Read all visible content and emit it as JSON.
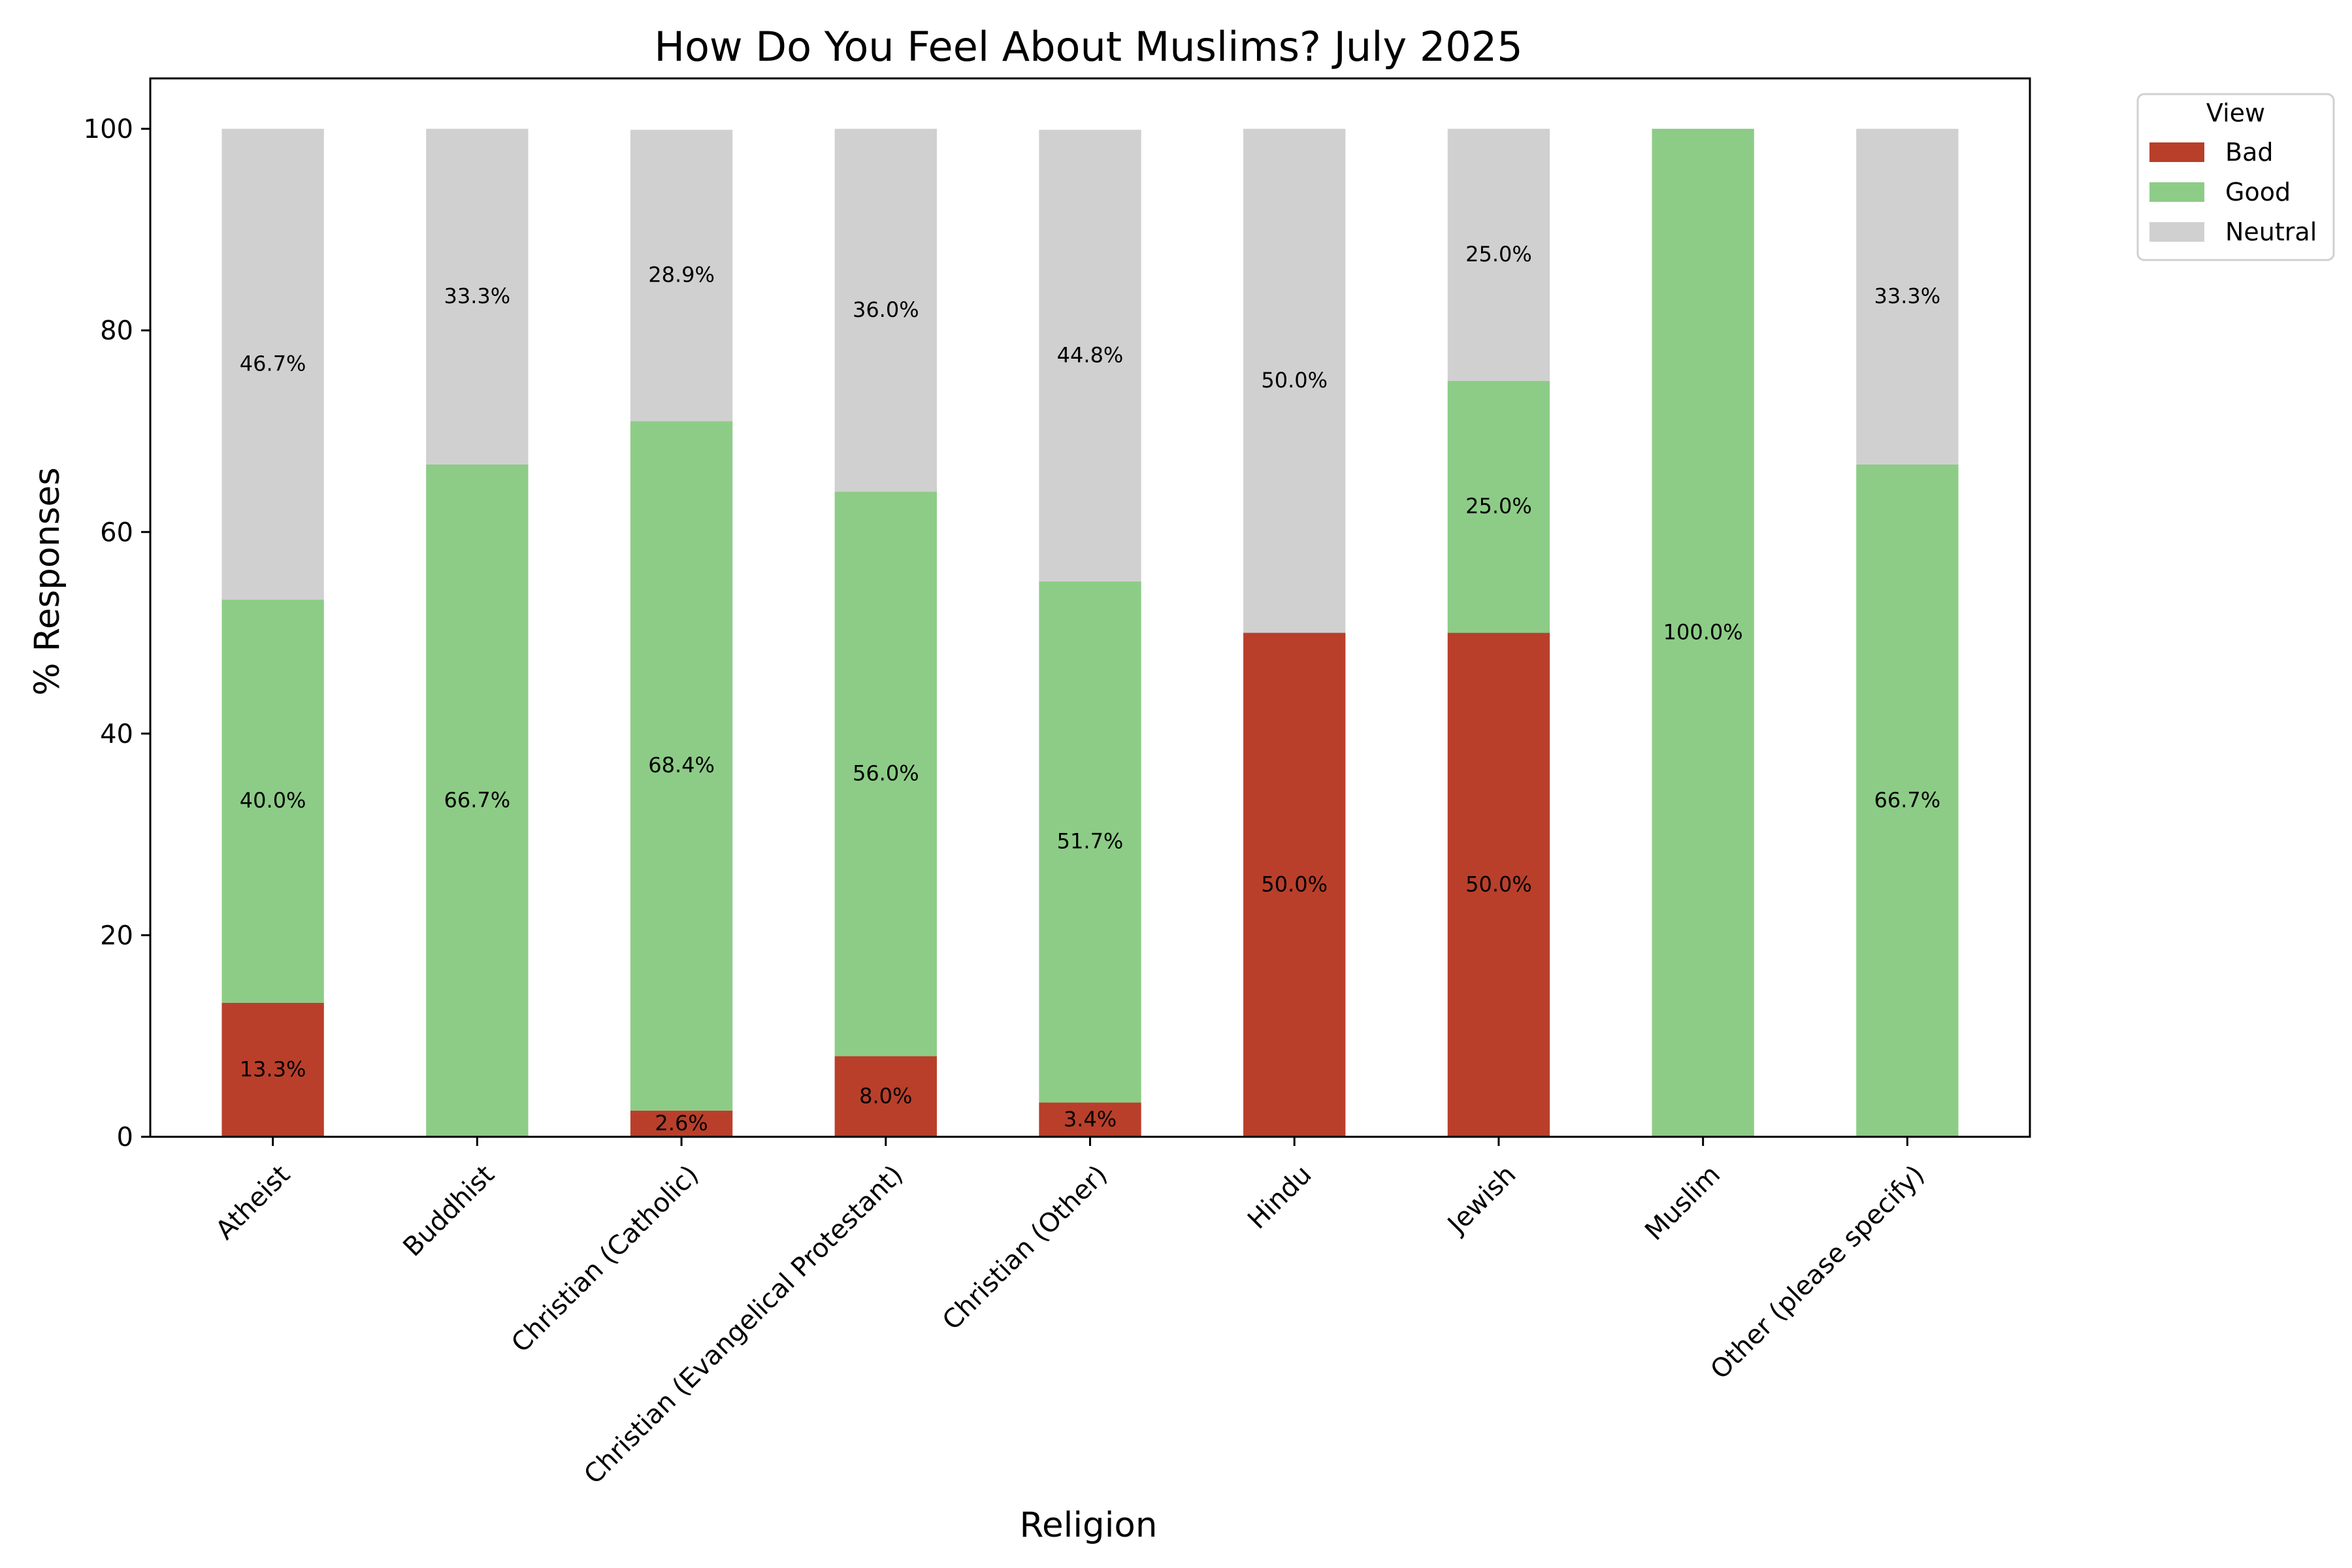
{
  "chart_data": {
    "type": "bar",
    "stacked": true,
    "title": "How Do You Feel About Muslims? July 2025",
    "xlabel": "Religion",
    "ylabel": "% Responses",
    "ylim": [
      0,
      105
    ],
    "yticks": [
      0,
      20,
      40,
      60,
      80,
      100
    ],
    "grid": false,
    "legend": {
      "title": "View",
      "placement": "outside top-right"
    },
    "categories": [
      "Atheist",
      "Buddhist",
      "Christian (Catholic)",
      "Christian (Evangelical Protestant)",
      "Christian (Other)",
      "Hindu",
      "Jewish",
      "Muslim",
      "Other (please specify)"
    ],
    "series": [
      {
        "name": "Bad",
        "color": "#b93f2b",
        "values": [
          13.3,
          0,
          2.6,
          8.0,
          3.4,
          50.0,
          50.0,
          0,
          0
        ]
      },
      {
        "name": "Good",
        "color": "#8dcc87",
        "values": [
          40.0,
          66.7,
          68.4,
          56.0,
          51.7,
          0,
          25.0,
          100.0,
          66.7
        ]
      },
      {
        "name": "Neutral",
        "color": "#d1d0d1",
        "values": [
          46.7,
          33.3,
          28.9,
          36.0,
          44.8,
          50.0,
          25.0,
          0,
          33.3
        ]
      }
    ]
  }
}
